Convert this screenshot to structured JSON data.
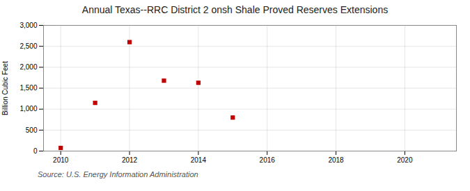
{
  "chart_data": {
    "type": "scatter",
    "title": "Annual Texas--RRC District 2 onsh Shale Proved Reserves Extensions",
    "ylabel": "Billion Cubic Feet",
    "annotations": [
      "Source: U.S. Energy Information Administration"
    ],
    "x": [
      2010,
      2011,
      2012,
      2013,
      2014,
      2015
    ],
    "values": [
      75,
      1150,
      2600,
      1680,
      1630,
      800
    ],
    "color": "#c00000",
    "marker": "square",
    "xlim": [
      2009.5,
      2021.5
    ],
    "ylim": [
      0,
      3000
    ],
    "xticks": [
      2010,
      2012,
      2014,
      2016,
      2018,
      2020
    ],
    "yticks": [
      0,
      500,
      {
        "value": 1000,
        "label": "1,000"
      },
      {
        "value": 1500,
        "label": "1,500"
      },
      {
        "value": 2000,
        "label": "2,000"
      },
      {
        "value": 2500,
        "label": "2,500"
      },
      {
        "value": 3000,
        "label": "3,000"
      }
    ],
    "grid": true
  }
}
